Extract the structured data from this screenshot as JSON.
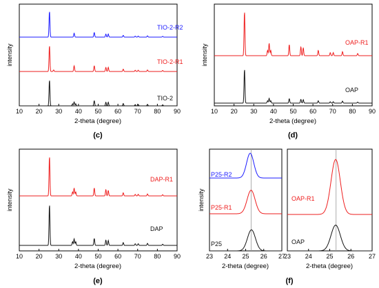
{
  "chart_data": [
    {
      "panel_label": "(c)",
      "type": "line",
      "xlabel": "2-theta (degree)",
      "ylabel": "intensity",
      "xlim": [
        10,
        90
      ],
      "xticks": [
        "10",
        "20",
        "30",
        "40",
        "50",
        "60",
        "70",
        "80",
        "90"
      ],
      "grid": false,
      "series": [
        {
          "name": "TIO-2-R2",
          "color": "#1a1aff",
          "peaks": [
            [
              25.3,
              1.0
            ],
            [
              37.8,
              0.15
            ],
            [
              48.0,
              0.18
            ],
            [
              53.9,
              0.12
            ],
            [
              55.1,
              0.12
            ],
            [
              62.7,
              0.07
            ],
            [
              68.8,
              0.04
            ],
            [
              70.3,
              0.04
            ],
            [
              75.0,
              0.05
            ],
            [
              82.7,
              0.03
            ]
          ]
        },
        {
          "name": "TIO-2-R1",
          "color": "#ee1c1c",
          "peaks": [
            [
              25.3,
              1.0
            ],
            [
              27.4,
              0.06
            ],
            [
              37.8,
              0.22
            ],
            [
              48.0,
              0.22
            ],
            [
              53.9,
              0.16
            ],
            [
              55.1,
              0.16
            ],
            [
              62.7,
              0.09
            ],
            [
              68.8,
              0.05
            ],
            [
              70.3,
              0.05
            ],
            [
              75.0,
              0.06
            ],
            [
              82.7,
              0.04
            ]
          ]
        },
        {
          "name": "TIO-2",
          "color": "#111111",
          "peaks": [
            [
              25.3,
              1.0
            ],
            [
              37.0,
              0.08
            ],
            [
              37.8,
              0.15
            ],
            [
              38.6,
              0.08
            ],
            [
              48.0,
              0.2
            ],
            [
              53.9,
              0.14
            ],
            [
              55.1,
              0.14
            ],
            [
              62.7,
              0.09
            ],
            [
              68.8,
              0.05
            ],
            [
              70.3,
              0.05
            ],
            [
              75.0,
              0.06
            ],
            [
              82.7,
              0.04
            ]
          ]
        }
      ]
    },
    {
      "panel_label": "(d)",
      "type": "line",
      "xlabel": "2-theta (degree)",
      "ylabel": "intensity",
      "xlim": [
        10,
        90
      ],
      "xticks": [
        "10",
        "20",
        "30",
        "40",
        "50",
        "60",
        "70",
        "80",
        "90"
      ],
      "grid": false,
      "series": [
        {
          "name": "OAP-R1",
          "color": "#ee1c1c",
          "peaks": [
            [
              25.3,
              1.0
            ],
            [
              37.0,
              0.12
            ],
            [
              37.8,
              0.28
            ],
            [
              38.6,
              0.12
            ],
            [
              48.0,
              0.25
            ],
            [
              53.9,
              0.2
            ],
            [
              55.1,
              0.18
            ],
            [
              62.7,
              0.12
            ],
            [
              68.8,
              0.07
            ],
            [
              70.3,
              0.07
            ],
            [
              75.0,
              0.09
            ],
            [
              82.7,
              0.05
            ]
          ]
        },
        {
          "name": "OAP",
          "color": "#111111",
          "peaks": [
            [
              25.3,
              1.0
            ],
            [
              37.0,
              0.07
            ],
            [
              37.8,
              0.14
            ],
            [
              38.6,
              0.07
            ],
            [
              48.0,
              0.13
            ],
            [
              53.9,
              0.11
            ],
            [
              55.1,
              0.1
            ],
            [
              62.7,
              0.07
            ],
            [
              68.8,
              0.04
            ],
            [
              70.3,
              0.04
            ],
            [
              75.0,
              0.06
            ],
            [
              82.7,
              0.03
            ]
          ]
        }
      ]
    },
    {
      "panel_label": "(e)",
      "type": "line",
      "xlabel": "2-theta (degree)",
      "ylabel": "intensity",
      "xlim": [
        10,
        90
      ],
      "xticks": [
        "10",
        "20",
        "30",
        "40",
        "50",
        "60",
        "70",
        "80",
        "90"
      ],
      "grid": false,
      "series": [
        {
          "name": "DAP-R1",
          "color": "#ee1c1c",
          "peaks": [
            [
              25.3,
              1.0
            ],
            [
              37.0,
              0.1
            ],
            [
              37.8,
              0.2
            ],
            [
              38.6,
              0.1
            ],
            [
              48.0,
              0.2
            ],
            [
              53.9,
              0.16
            ],
            [
              55.1,
              0.14
            ],
            [
              62.7,
              0.08
            ],
            [
              68.8,
              0.04
            ],
            [
              70.3,
              0.04
            ],
            [
              75.0,
              0.05
            ],
            [
              82.7,
              0.03
            ]
          ]
        },
        {
          "name": "DAP",
          "color": "#111111",
          "peaks": [
            [
              25.3,
              1.0
            ],
            [
              37.0,
              0.09
            ],
            [
              37.8,
              0.16
            ],
            [
              38.6,
              0.09
            ],
            [
              48.0,
              0.17
            ],
            [
              53.9,
              0.13
            ],
            [
              55.1,
              0.12
            ],
            [
              62.7,
              0.07
            ],
            [
              68.8,
              0.04
            ],
            [
              70.3,
              0.04
            ],
            [
              75.0,
              0.05
            ],
            [
              82.7,
              0.03
            ]
          ]
        }
      ]
    },
    {
      "panel_label": "(f)",
      "type": "line",
      "xlabel": "2-theta (degree)",
      "ylabel": "intensity",
      "xlim": [
        23,
        27
      ],
      "xticks": [
        "23",
        "24",
        "25",
        "26",
        "27"
      ],
      "reference_line_x": 25.3,
      "grid": false,
      "series": [
        {
          "name": "P25-R2",
          "color": "#1a1aff",
          "center": 25.25,
          "width": 0.2,
          "height": 1.0
        },
        {
          "name": "P25-R1",
          "color": "#ee1c1c",
          "center": 25.3,
          "width": 0.22,
          "height": 0.95
        },
        {
          "name": "P25",
          "color": "#111111",
          "center": 25.32,
          "width": 0.22,
          "height": 0.85
        }
      ]
    },
    {
      "panel_label": "",
      "type": "line",
      "xlabel": "2-theta (degree)",
      "ylabel": "",
      "xlim": [
        23,
        27
      ],
      "xticks": [
        "23",
        "24",
        "25",
        "26",
        "27"
      ],
      "reference_line_x": 25.3,
      "grid": false,
      "series": [
        {
          "name": "OAP-R1",
          "color": "#ee1c1c",
          "center": 25.28,
          "width": 0.22,
          "height": 1.0
        },
        {
          "name": "OAP",
          "color": "#111111",
          "center": 25.28,
          "width": 0.22,
          "height": 0.75
        }
      ]
    }
  ]
}
